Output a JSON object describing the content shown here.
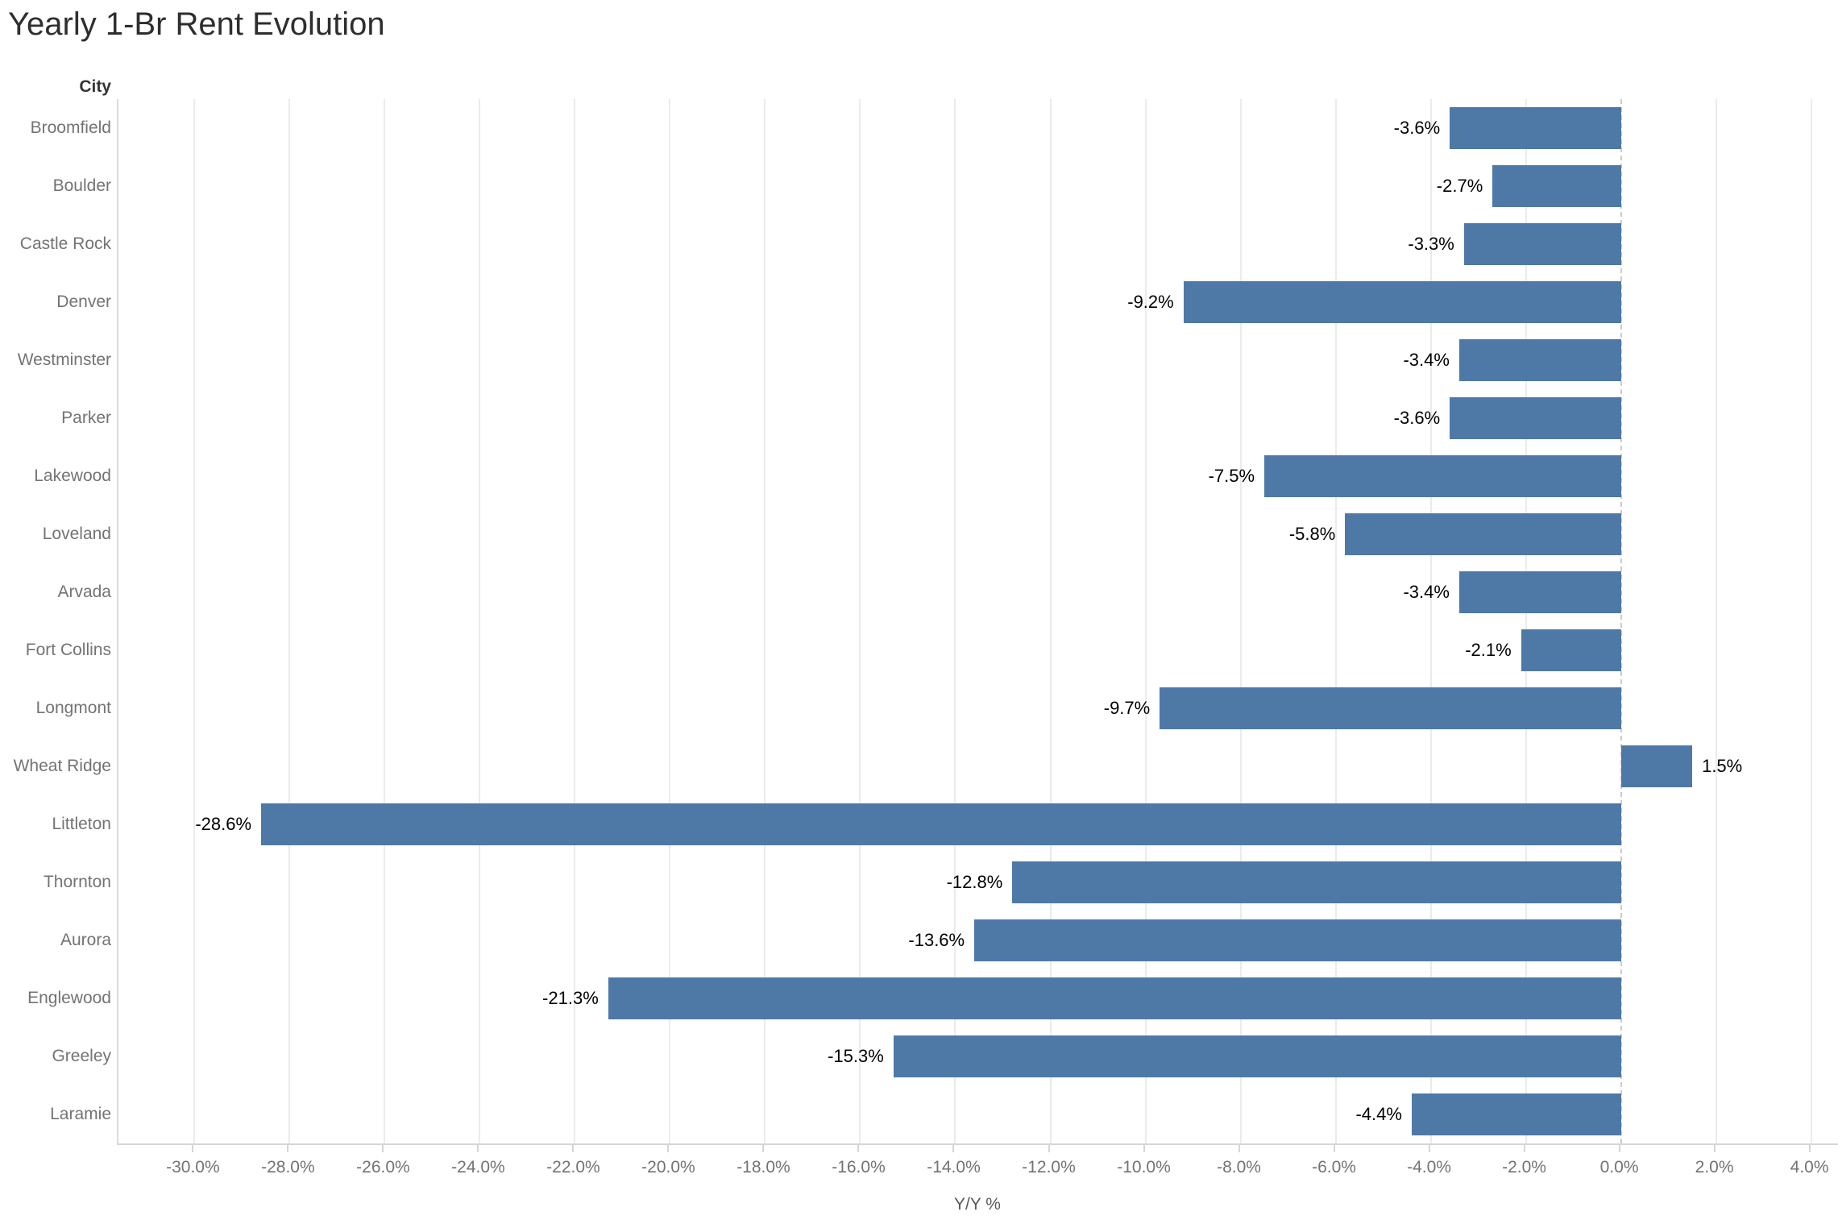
{
  "chart_data": {
    "type": "bar",
    "orientation": "horizontal",
    "title": "Yearly 1-Br Rent Evolution",
    "ylabel": "City",
    "xlabel": "Y/Y %",
    "categories": [
      "Broomfield",
      "Boulder",
      "Castle Rock",
      "Denver",
      "Westminster",
      "Parker",
      "Lakewood",
      "Loveland",
      "Arvada",
      "Fort Collins",
      "Longmont",
      "Wheat Ridge",
      "Littleton",
      "Thornton",
      "Aurora",
      "Englewood",
      "Greeley",
      "Laramie"
    ],
    "values": [
      -3.6,
      -2.7,
      -3.3,
      -9.2,
      -3.4,
      -3.6,
      -7.5,
      -5.8,
      -3.4,
      -2.1,
      -9.7,
      1.5,
      -28.6,
      -12.8,
      -13.6,
      -21.3,
      -15.3,
      -4.4
    ],
    "value_labels": [
      "-3.6%",
      "-2.7%",
      "-3.3%",
      "-9.2%",
      "-3.4%",
      "-3.6%",
      "-7.5%",
      "-5.8%",
      "-3.4%",
      "-2.1%",
      "-9.7%",
      "1.5%",
      "-28.6%",
      "-12.8%",
      "-13.6%",
      "-21.3%",
      "-15.3%",
      "-4.4%"
    ],
    "xlim": [
      -31.6,
      4.6
    ],
    "xticks": {
      "values": [
        -30,
        -28,
        -26,
        -24,
        -22,
        -20,
        -18,
        -16,
        -14,
        -12,
        -10,
        -8,
        -6,
        -4,
        -2,
        0,
        2,
        4
      ],
      "labels": [
        "-30.0%",
        "-28.0%",
        "-26.0%",
        "-24.0%",
        "-22.0%",
        "-20.0%",
        "-18.0%",
        "-16.0%",
        "-14.0%",
        "-12.0%",
        "-10.0%",
        "-8.0%",
        "-6.0%",
        "-4.0%",
        "-2.0%",
        "0.0%",
        "2.0%",
        "4.0%"
      ]
    },
    "grid": true,
    "legend": false,
    "colors": {
      "bar": "#4e79a7",
      "title_text": "#2e2e2e",
      "axis_text": "#737373",
      "header_text": "#343434",
      "value_text": "#000000",
      "axis_title_text": "#595959",
      "gridline": "#ebebeb",
      "zero_line": "#cccccc",
      "axis_line": "#d6d6d6",
      "pane_border": "#dcdcdc"
    }
  }
}
